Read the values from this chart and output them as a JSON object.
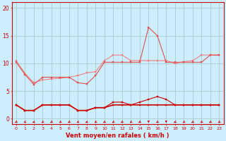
{
  "x": [
    0,
    1,
    2,
    3,
    4,
    5,
    6,
    7,
    8,
    9,
    10,
    11,
    12,
    13,
    14,
    15,
    16,
    17,
    18,
    19,
    20,
    21,
    22,
    23
  ],
  "line1": [
    10.5,
    8.2,
    6.5,
    7.0,
    7.2,
    7.3,
    7.5,
    7.8,
    8.3,
    8.5,
    10.5,
    11.5,
    11.5,
    10.5,
    10.5,
    10.5,
    10.5,
    10.5,
    10.0,
    10.3,
    10.5,
    11.5,
    11.5,
    11.5
  ],
  "line2": [
    10.2,
    8.0,
    6.2,
    7.5,
    7.5,
    7.5,
    7.5,
    6.5,
    6.3,
    7.8,
    10.2,
    10.2,
    10.2,
    10.2,
    10.2,
    16.5,
    15.0,
    10.2,
    10.2,
    10.2,
    10.2,
    10.2,
    11.5,
    11.5
  ],
  "line3": [
    2.5,
    1.5,
    1.5,
    2.5,
    2.5,
    2.5,
    2.5,
    1.5,
    1.5,
    2.0,
    2.0,
    3.0,
    3.0,
    2.5,
    3.0,
    3.5,
    4.0,
    3.5,
    2.5,
    2.5,
    2.5,
    2.5,
    2.5,
    2.5
  ],
  "line4": [
    2.5,
    1.5,
    1.5,
    2.5,
    2.5,
    2.5,
    2.5,
    1.5,
    1.5,
    2.0,
    2.0,
    2.5,
    2.5,
    2.5,
    2.5,
    2.5,
    2.5,
    2.5,
    2.5,
    2.5,
    2.5,
    2.5,
    2.5,
    2.5
  ],
  "color_light": "#f08080",
  "color_medium": "#e05050",
  "color_dark": "#cc0000",
  "bg_color": "#cceeff",
  "grid_color": "#aacccc",
  "xlabel": "Vent moyen/en rafales ( km/h )",
  "xlim": [
    -0.5,
    23.5
  ],
  "ylim": [
    -1.0,
    21
  ],
  "yticks": [
    0,
    5,
    10,
    15,
    20
  ],
  "arrow_angles_deg": [
    225,
    210,
    210,
    225,
    225,
    225,
    225,
    210,
    210,
    225,
    225,
    225,
    225,
    225,
    225,
    270,
    225,
    270,
    225,
    225,
    225,
    225,
    225,
    225
  ]
}
